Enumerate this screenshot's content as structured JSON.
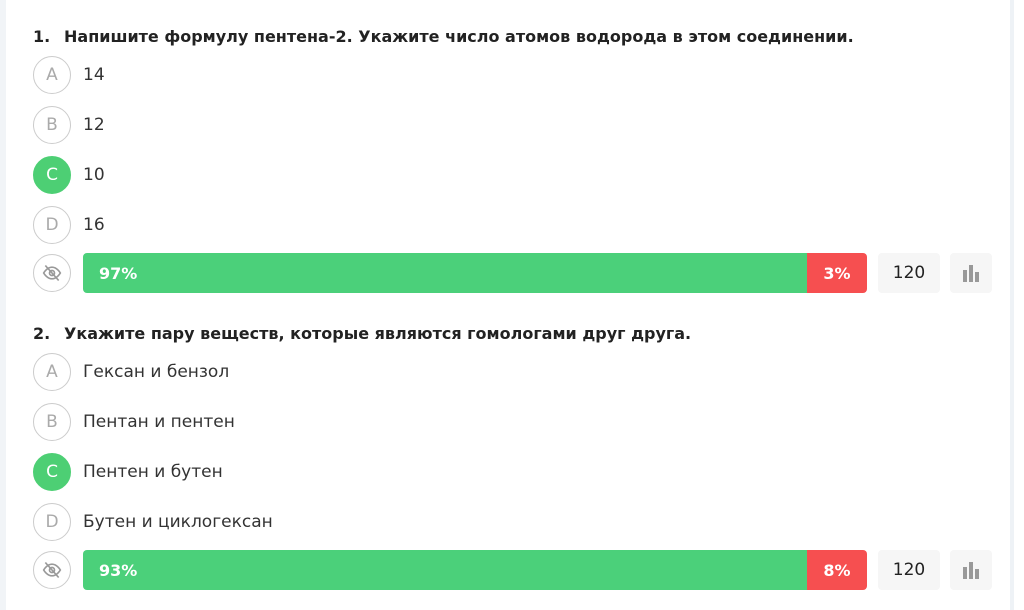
{
  "questions": [
    {
      "number": "1.",
      "text": "Напишите формулу пентена-2. Укажите число атомов водорода в этом соединении.",
      "options": [
        {
          "letter": "A",
          "text": "14"
        },
        {
          "letter": "B",
          "text": "12"
        },
        {
          "letter": "C",
          "text": "10",
          "correct": true
        },
        {
          "letter": "D",
          "text": "16"
        }
      ],
      "correct_pct": "97%",
      "wrong_pct": "3%",
      "count": "120"
    },
    {
      "number": "2.",
      "text": "Укажите пару веществ, которые являются гомологами друг друга.",
      "options": [
        {
          "letter": "A",
          "text": "Гексан и бензол"
        },
        {
          "letter": "B",
          "text": "Пентан и пентен"
        },
        {
          "letter": "C",
          "text": "Пентен и бутен",
          "correct": true
        },
        {
          "letter": "D",
          "text": "Бутен и циклогексан"
        }
      ],
      "correct_pct": "93%",
      "wrong_pct": "8%",
      "count": "120"
    }
  ],
  "colors": {
    "correct": "#4bd07a",
    "wrong": "#f64f50"
  }
}
